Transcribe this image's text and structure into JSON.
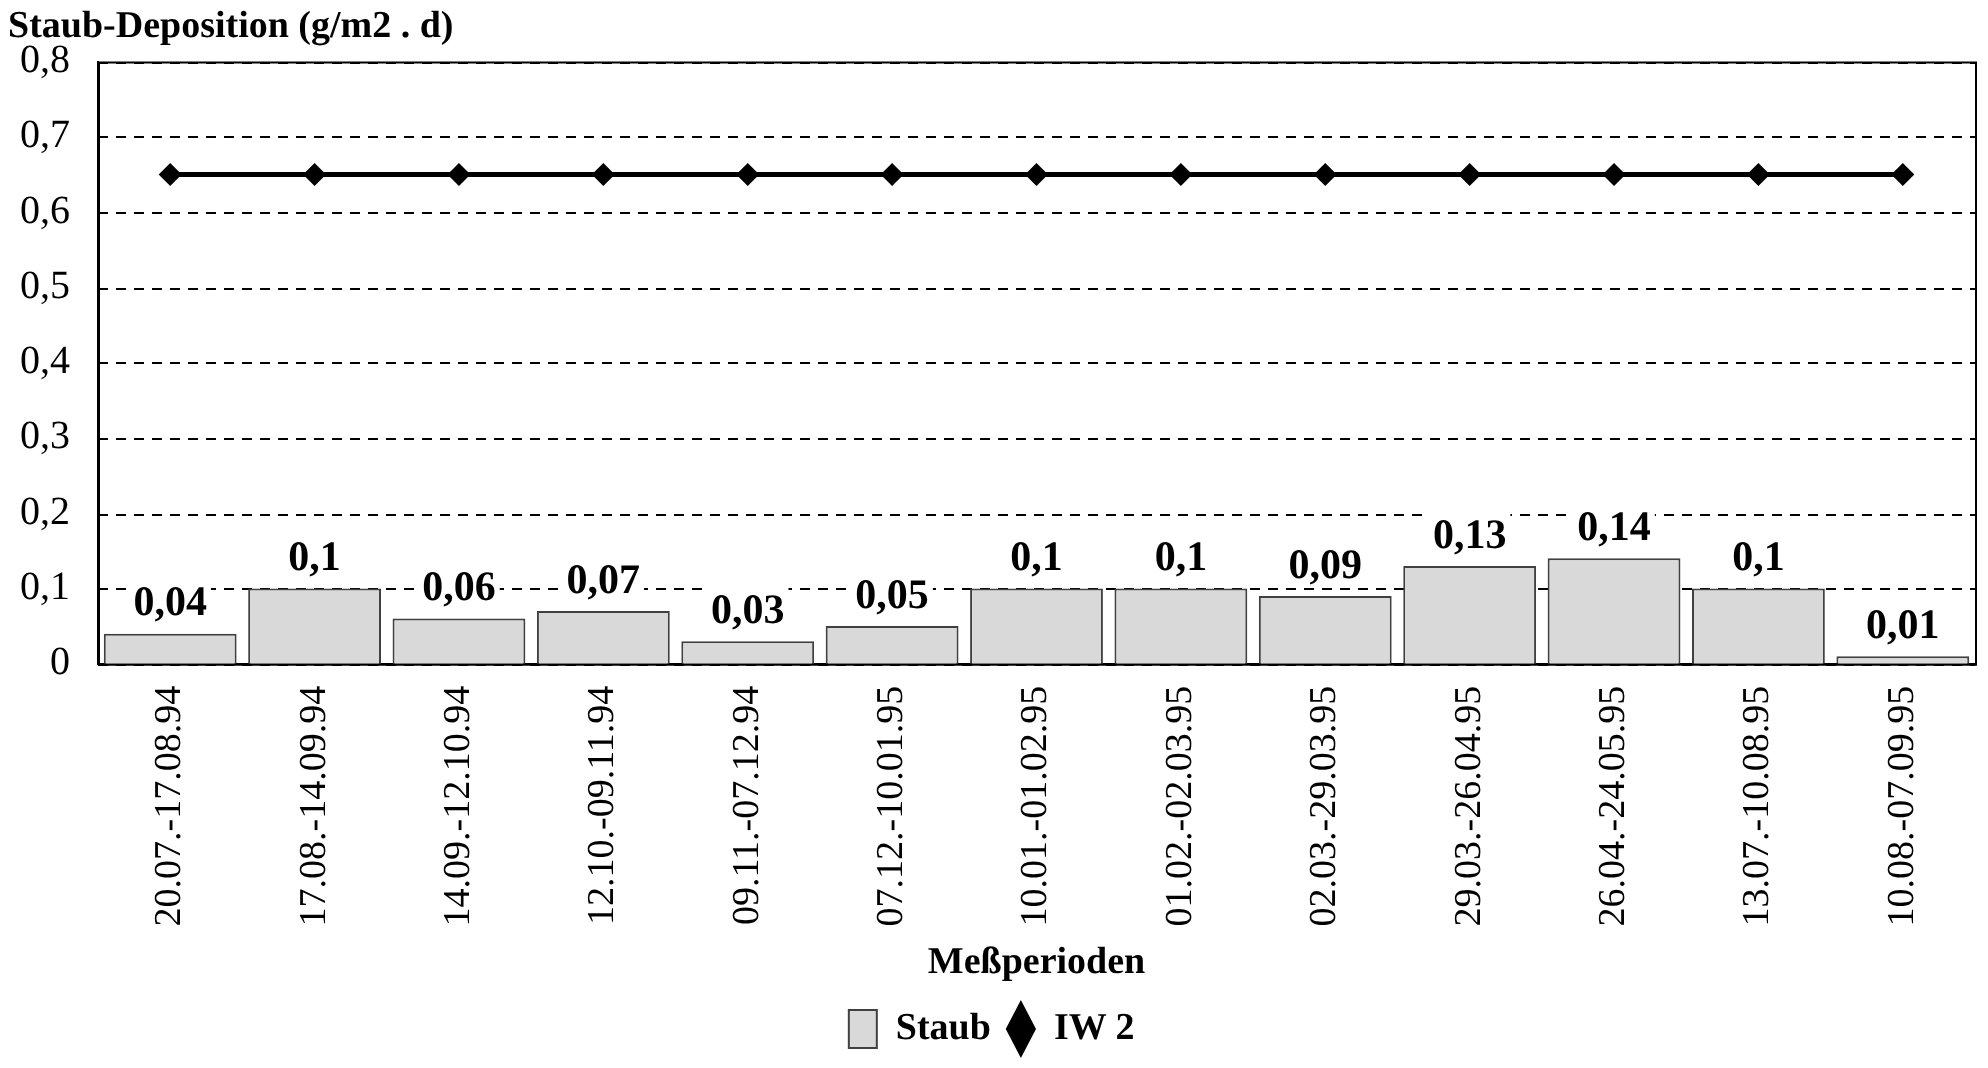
{
  "chart_data": {
    "type": "bar",
    "title": "Staub-Deposition (g/m2 . d)",
    "xlabel": "Meßperioden",
    "categories": [
      "20.07.-17.08.94",
      "17.08.-14.09.94",
      "14.09.-12.10.94",
      "12.10.-09.11.94",
      "09.11.-07.12.94",
      "07.12.-10.01.95",
      "10.01.-01.02.95",
      "01.02.-02.03.95",
      "02.03.-29.03.95",
      "29.03.-26.04.95",
      "26.04.-24.05.95",
      "13.07.-10.08.95",
      "10.08.-07.09.95"
    ],
    "series": [
      {
        "name": "Staub",
        "color": "#d9d9d9",
        "values": [
          0.04,
          0.1,
          0.06,
          0.07,
          0.03,
          0.05,
          0.1,
          0.1,
          0.09,
          0.13,
          0.14,
          0.1,
          0.01
        ],
        "value_labels": [
          "0,04",
          "0,1",
          "0,06",
          "0,07",
          "0,03",
          "0,05",
          "0,1",
          "0,1",
          "0,09",
          "0,13",
          "0,14",
          "0,1",
          "0,01"
        ]
      },
      {
        "name": "IW 2",
        "type": "line",
        "color": "#000000",
        "marker": "diamond",
        "values": [
          0.65,
          0.65,
          0.65,
          0.65,
          0.65,
          0.65,
          0.65,
          0.65,
          0.65,
          0.65,
          0.65,
          0.65,
          0.65
        ]
      }
    ],
    "ylim": [
      0,
      0.8
    ],
    "yticks": [
      {
        "value": 0,
        "label": "0"
      },
      {
        "value": 0.1,
        "label": "0,1"
      },
      {
        "value": 0.2,
        "label": "0,2"
      },
      {
        "value": 0.3,
        "label": "0,3"
      },
      {
        "value": 0.4,
        "label": "0,4"
      },
      {
        "value": 0.5,
        "label": "0,5"
      },
      {
        "value": 0.6,
        "label": "0,6"
      },
      {
        "value": 0.7,
        "label": "0,7"
      },
      {
        "value": 0.8,
        "label": "0,8"
      }
    ],
    "grid": "y",
    "legend": "bottom"
  }
}
